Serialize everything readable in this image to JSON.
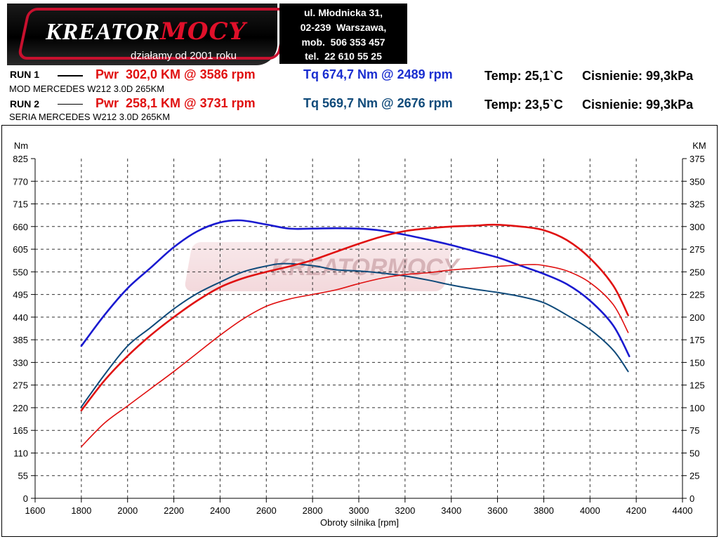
{
  "header": {
    "logo": {
      "main": "KREATOR",
      "accent": "MOCY",
      "tagline": "działamy od 2001 roku"
    },
    "address": [
      "ul. Młodnicka 31,",
      "02-239  Warszawa,",
      "mob.  506 353 457",
      "tel.  22 610 55 25"
    ]
  },
  "runs": [
    {
      "label": "RUN 1",
      "car": "MOD MERCEDES W212 3.0D 265KM",
      "pwr": "Pwr  302,0 KM @ 3586 rpm",
      "tq": "Tq 674,7 Nm @ 2489 rpm",
      "temp": "Temp: 25,1`C",
      "pressure": "Cisnienie: 99,3kPa"
    },
    {
      "label": "RUN 2",
      "car": "SERIA MERCEDES W212 3.0D 265KM",
      "pwr": "Pwr  258,1 KM @ 3731 rpm",
      "tq": "Tq 569,7 Nm @ 2676 rpm",
      "temp": "Temp: 23,5`C",
      "pressure": "Cisnienie: 99,3kPa"
    }
  ],
  "chart_data": {
    "type": "line",
    "xlabel": "Obroty silnika [rpm]",
    "ylabel_left": "Nm",
    "ylabel_right": "KM",
    "xlim": [
      1600,
      4400
    ],
    "ylim_left": [
      0,
      825
    ],
    "ylim_right": [
      0,
      375
    ],
    "x_ticks": [
      1600,
      1800,
      2000,
      2200,
      2400,
      2600,
      2800,
      3000,
      3200,
      3400,
      3600,
      3800,
      4000,
      4200,
      4400
    ],
    "y_ticks_left": [
      0,
      55,
      110,
      165,
      220,
      275,
      330,
      385,
      440,
      495,
      550,
      605,
      660,
      715,
      770,
      825
    ],
    "y_ticks_right": [
      0,
      25,
      50,
      75,
      100,
      125,
      150,
      175,
      200,
      225,
      250,
      275,
      300,
      325,
      350,
      375
    ],
    "grid": true,
    "watermark": "KREATORMOCY",
    "series": [
      {
        "name": "Tq RUN 1",
        "axis": "left",
        "color": "#1a1ad0",
        "width": 2.6,
        "x": [
          1800,
          1900,
          2000,
          2100,
          2200,
          2300,
          2400,
          2489,
          2600,
          2700,
          2800,
          2900,
          3000,
          3100,
          3200,
          3300,
          3400,
          3500,
          3600,
          3700,
          3800,
          3900,
          4000,
          4100,
          4170
        ],
        "y": [
          370,
          445,
          510,
          560,
          610,
          648,
          670,
          675,
          665,
          655,
          655,
          656,
          655,
          650,
          640,
          628,
          615,
          600,
          585,
          565,
          545,
          520,
          480,
          420,
          345
        ]
      },
      {
        "name": "Tq RUN 2",
        "axis": "left",
        "color": "#0f4a7a",
        "width": 2,
        "x": [
          1800,
          1900,
          2000,
          2100,
          2200,
          2300,
          2400,
          2500,
          2600,
          2676,
          2800,
          2900,
          3000,
          3100,
          3200,
          3300,
          3400,
          3500,
          3600,
          3700,
          3800,
          3900,
          4000,
          4100,
          4165
        ],
        "y": [
          222,
          300,
          370,
          415,
          460,
          497,
          525,
          550,
          564,
          570,
          565,
          555,
          552,
          547,
          540,
          530,
          518,
          508,
          500,
          490,
          475,
          445,
          410,
          360,
          308
        ]
      },
      {
        "name": "Pwr RUN 1",
        "axis": "right",
        "color": "#e01010",
        "width": 2.6,
        "x": [
          1800,
          1900,
          2000,
          2100,
          2200,
          2300,
          2400,
          2500,
          2600,
          2700,
          2800,
          2900,
          3000,
          3100,
          3200,
          3300,
          3400,
          3500,
          3586,
          3700,
          3800,
          3900,
          4000,
          4100,
          4165
        ],
        "y": [
          97,
          130,
          157,
          180,
          200,
          218,
          233,
          243,
          250,
          256,
          263,
          272,
          281,
          289,
          295,
          298,
          300,
          301,
          302,
          300,
          296,
          285,
          265,
          235,
          202
        ]
      },
      {
        "name": "Pwr RUN 2",
        "axis": "right",
        "color": "#e01010",
        "width": 1.6,
        "x": [
          1800,
          1900,
          2000,
          2100,
          2200,
          2300,
          2400,
          2500,
          2600,
          2700,
          2800,
          2900,
          3000,
          3100,
          3200,
          3300,
          3400,
          3500,
          3600,
          3731,
          3800,
          3900,
          4000,
          4100,
          4165
        ],
        "y": [
          57,
          83,
          102,
          121,
          140,
          160,
          180,
          198,
          212,
          220,
          225,
          230,
          237,
          243,
          247,
          249,
          252,
          254,
          256,
          258,
          257,
          251,
          238,
          214,
          183
        ]
      }
    ]
  }
}
